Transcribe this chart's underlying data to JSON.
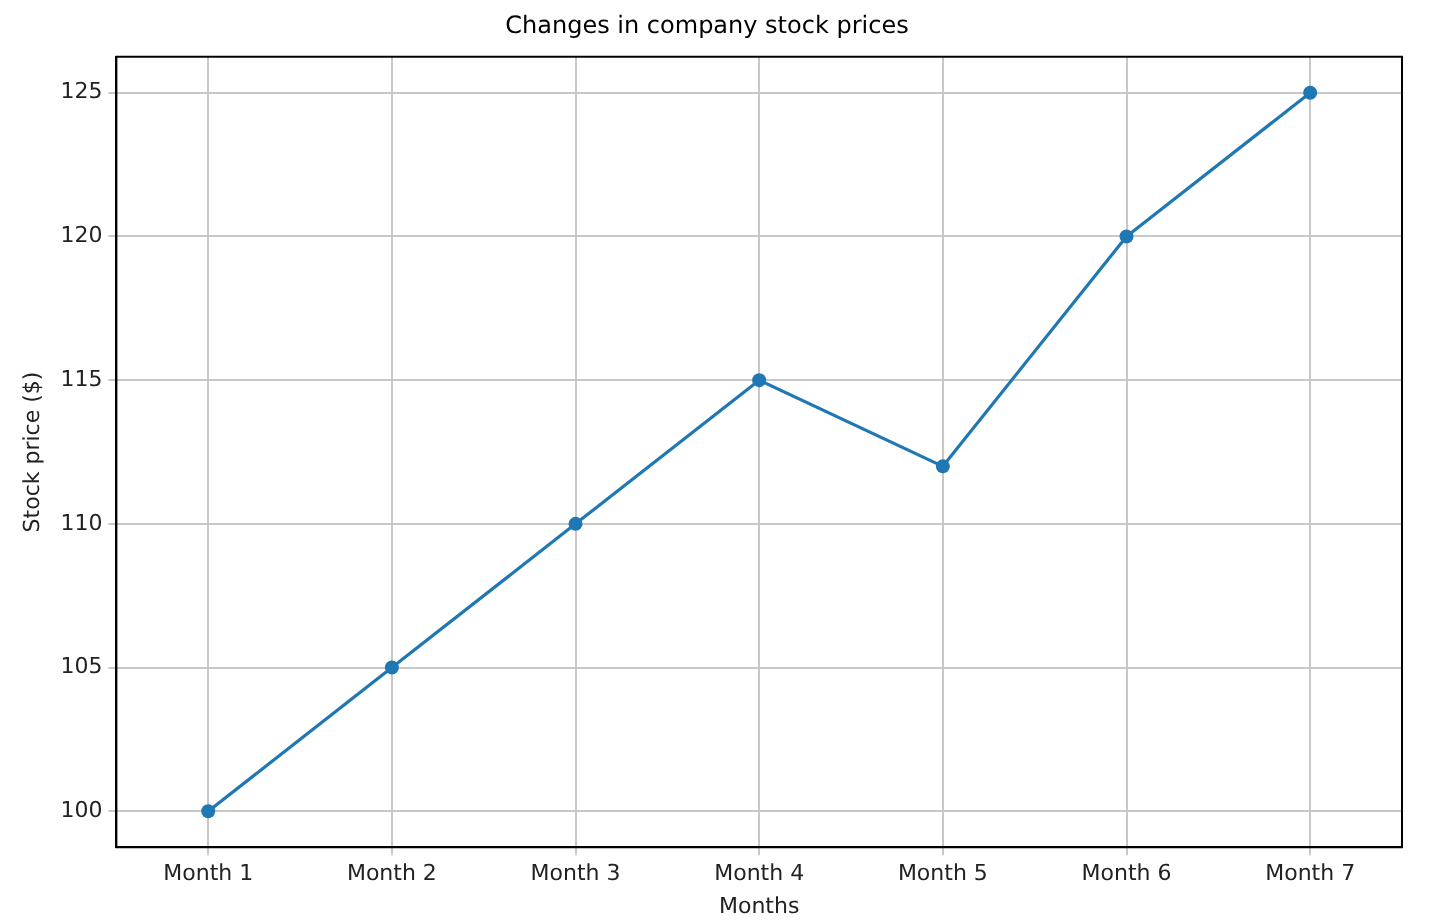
{
  "chart_data": {
    "type": "line",
    "title": "Changes in company stock prices",
    "xlabel": "Months",
    "ylabel": "Stock price ($)",
    "categories": [
      "Month 1",
      "Month 2",
      "Month 3",
      "Month 4",
      "Month 5",
      "Month 6",
      "Month 7"
    ],
    "series": [
      {
        "color": "#1f77b4",
        "values": [
          100,
          105,
          110,
          115,
          112,
          120,
          125
        ]
      }
    ],
    "ylim": [
      98.75,
      126.25
    ],
    "yticks": [
      100,
      105,
      110,
      115,
      120,
      125
    ],
    "grid": true,
    "marker": "circle",
    "line_style": "solid",
    "legend": false
  }
}
